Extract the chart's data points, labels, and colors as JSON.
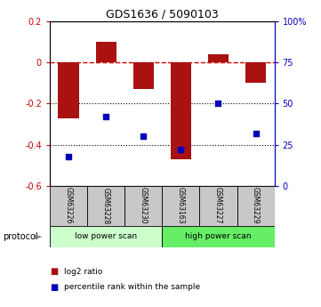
{
  "title": "GDS1636 / 5090103",
  "samples": [
    "GSM63226",
    "GSM63228",
    "GSM63230",
    "GSM63163",
    "GSM63227",
    "GSM63229"
  ],
  "log2_ratio": [
    -0.27,
    0.1,
    -0.13,
    -0.47,
    0.04,
    -0.1
  ],
  "percentile_rank": [
    18,
    42,
    30,
    22,
    50,
    32
  ],
  "ylim_left": [
    -0.6,
    0.2
  ],
  "ylim_right": [
    0,
    100
  ],
  "yticks_left": [
    -0.6,
    -0.4,
    -0.2,
    0.0,
    0.2
  ],
  "ytick_labels_left": [
    "-0.6",
    "-0.4",
    "-0.2",
    "0",
    "0.2"
  ],
  "yticks_right": [
    0,
    25,
    50,
    75,
    100
  ],
  "ytick_labels_right": [
    "0",
    "25",
    "50",
    "75",
    "100%"
  ],
  "bar_color": "#AA1111",
  "dot_color": "#0000BB",
  "bar_width": 0.55,
  "protocol_groups": [
    {
      "label": "low power scan",
      "indices": [
        0,
        1,
        2
      ],
      "color": "#CCFFCC"
    },
    {
      "label": "high power scan",
      "indices": [
        3,
        4,
        5
      ],
      "color": "#66EE66"
    }
  ],
  "legend_bar_label": "log2 ratio",
  "legend_dot_label": "percentile rank within the sample",
  "background_color": "#ffffff",
  "dashed_line_color": "#DD0000",
  "left_axis_color": "#CC0000",
  "right_axis_color": "#0000BB",
  "sample_box_color": "#C8C8C8",
  "protocol_label": "protocol"
}
